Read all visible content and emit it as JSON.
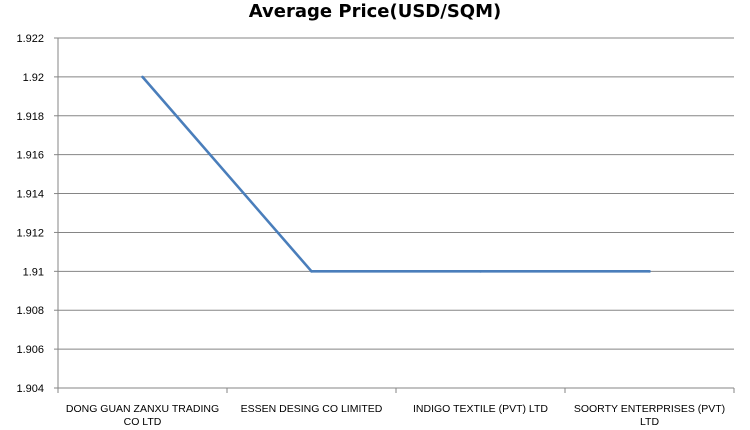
{
  "chart_data": {
    "type": "line",
    "title": "Average Price(USD/SQM)",
    "xlabel": "",
    "ylabel": "",
    "categories": [
      [
        "DONG GUAN ZANXU TRADING",
        "CO LTD"
      ],
      [
        "ESSEN DESING CO LIMITED"
      ],
      [
        "INDIGO TEXTILE (PVT) LTD"
      ],
      [
        "SOORTY ENTERPRISES (PVT)",
        "LTD"
      ]
    ],
    "series": [
      {
        "values": [
          1.92,
          1.91,
          1.91,
          1.91
        ],
        "color": "#4a7ebb"
      }
    ],
    "ylim": [
      1.904,
      1.922
    ],
    "yticks": [
      "1.904",
      "1.906",
      "1.908",
      "1.91",
      "1.912",
      "1.914",
      "1.916",
      "1.918",
      "1.92",
      "1.922"
    ],
    "grid": true,
    "legend": "none"
  }
}
